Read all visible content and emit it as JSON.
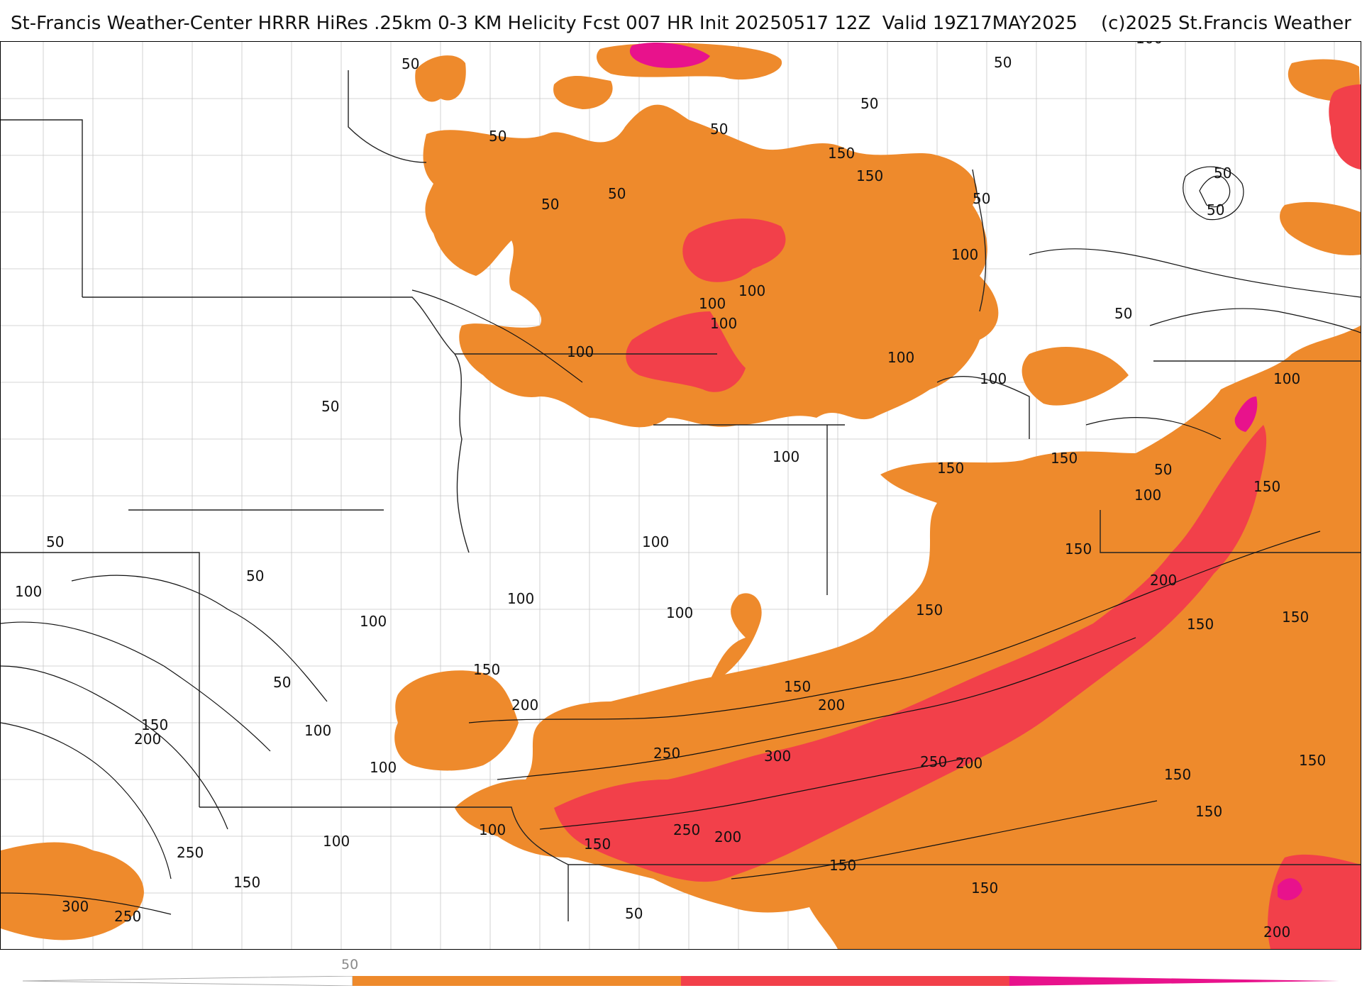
{
  "header": {
    "title": "St-Francis Weather-Center HRRR HiRes .25km 0-3 KM Helicity Fcst 007 HR Init 20250517 12Z  Valid 19Z17MAY2025    (c)2025 St.Francis Weather"
  },
  "map": {
    "product": "0-3 KM Helicity",
    "contour_labels": [
      "50",
      "50",
      "50",
      "50",
      "50",
      "50",
      "50",
      "50",
      "50",
      "50",
      "50",
      "50",
      "50",
      "50",
      "50",
      "50",
      "50",
      "100",
      "100",
      "100",
      "100",
      "100",
      "100",
      "100",
      "100",
      "100",
      "100",
      "100",
      "100",
      "100",
      "100",
      "100",
      "100",
      "100",
      "100",
      "100",
      "100",
      "150",
      "150",
      "150",
      "150",
      "150",
      "150",
      "150",
      "150",
      "150",
      "150",
      "150",
      "150",
      "150",
      "150",
      "150",
      "150",
      "150",
      "150",
      "150",
      "200",
      "200",
      "200",
      "200",
      "200",
      "200",
      "200",
      "250",
      "250",
      "250",
      "250",
      "250",
      "300",
      "300"
    ],
    "colors": {
      "band_50_150": "#ee8a2c",
      "band_150_250": "#f2404a",
      "band_250_plus": "#e8128c",
      "contour": "#111111",
      "county_lines": "#bdbdbd",
      "state_lines": "#222222"
    }
  },
  "legend": {
    "tick_label": "50",
    "colors": [
      "#ee8a2c",
      "#f2404a",
      "#e8128c"
    ]
  }
}
